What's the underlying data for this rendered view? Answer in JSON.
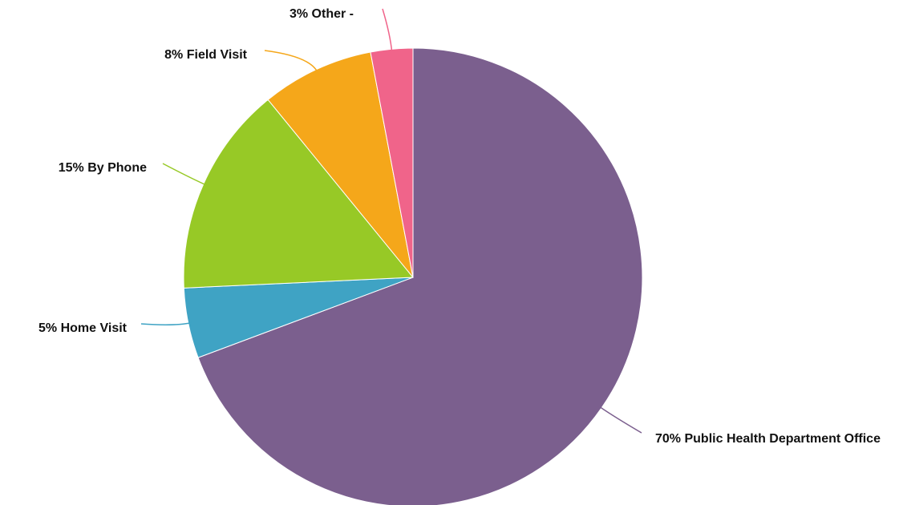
{
  "chart_data": {
    "type": "pie",
    "categories": [
      "Public Health Department Office",
      "Home Visit",
      "By Phone",
      "Field Visit",
      "Other -"
    ],
    "values": [
      70,
      5,
      15,
      8,
      3
    ],
    "value_labels": [
      "70%",
      "5%",
      "15%",
      "8%",
      "3%"
    ],
    "colors": [
      "#7b5f8e",
      "#3fa3c4",
      "#97c926",
      "#f5a71a",
      "#f0648a"
    ]
  }
}
